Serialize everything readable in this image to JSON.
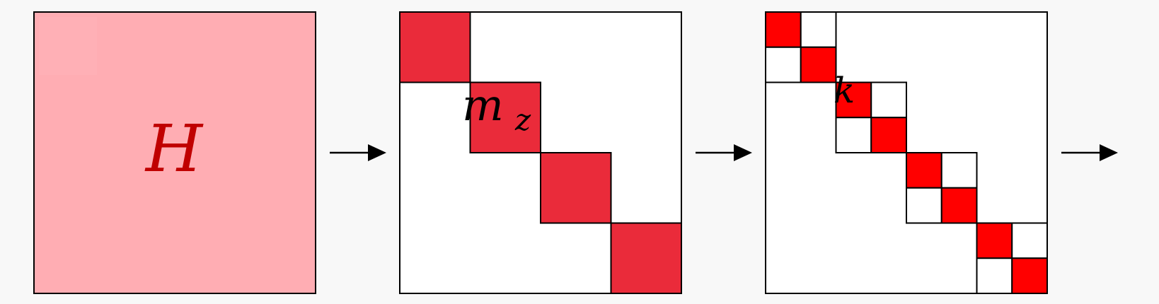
{
  "diagram": {
    "panels": [
      {
        "id": "full-matrix",
        "label": "H",
        "fill": "#ffadb3",
        "label_color": "#c00000"
      },
      {
        "id": "block-matrix-mz",
        "label": "m",
        "label_subscript": "z",
        "fill": "#ea2b3a",
        "label_color": "#000000",
        "block_count": 4
      },
      {
        "id": "block-matrix-k",
        "label": "k",
        "fill": "#ff0000",
        "label_color": "#000000",
        "block_count": 4,
        "sub_blocks_per_block": 2
      }
    ],
    "arrow_count": 3,
    "colors": {
      "background": "#f8f8f8",
      "outline": "#000000",
      "empty": "#ffffff"
    }
  }
}
